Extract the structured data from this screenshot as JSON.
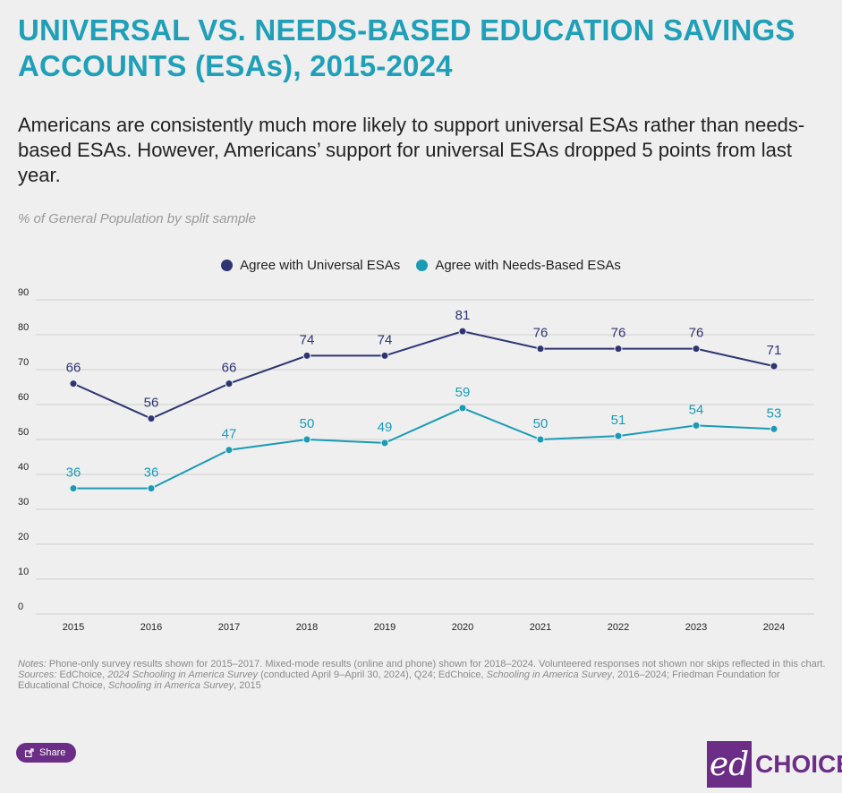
{
  "header": {
    "title": "UNIVERSAL VS. NEEDS-BASED EDUCATION SAVINGS ACCOUNTS (ESAs), 2015-2024",
    "subtitle": "Americans are consistently much more likely to support universal ESAs rather than needs-based ESAs. However, Americans’ support for universal ESAs dropped 5 points from last year.",
    "sample_note": "% of General Population by split sample"
  },
  "chart_data": {
    "type": "line",
    "x": [
      2015,
      2016,
      2017,
      2018,
      2019,
      2020,
      2021,
      2022,
      2023,
      2024
    ],
    "series": [
      {
        "name": "Agree with Universal ESAs",
        "color": "#2e3573",
        "values": [
          66,
          56,
          66,
          74,
          74,
          81,
          76,
          76,
          76,
          71
        ]
      },
      {
        "name": "Agree with Needs-Based ESAs",
        "color": "#1a9bb5",
        "values": [
          36,
          36,
          47,
          50,
          49,
          59,
          50,
          51,
          54,
          53
        ]
      }
    ],
    "ylim": [
      0,
      90
    ],
    "yticks": [
      0,
      10,
      20,
      30,
      40,
      50,
      60,
      70,
      80,
      90
    ],
    "grid": true,
    "legend_position": "top-center",
    "data_labels": true
  },
  "footer": {
    "notes_label": "Notes:",
    "notes_text": " Phone-only survey results shown for 2015–2017. Mixed-mode results (online and phone) shown for 2018–2024. Volunteered responses not shown nor skips reflected in this chart.",
    "sources_label": "Sources:",
    "sources_part1": " EdChoice, ",
    "sources_italic1": "2024 Schooling in America Survey",
    "sources_part2": " (conducted April 9–April 30, 2024), Q24; EdChoice, ",
    "sources_italic2": "Schooling in America Survey",
    "sources_part3": ", 2016–2024; Friedman Foundation for Educational Choice, ",
    "sources_italic3": "Schooling in America Survey",
    "sources_part4": ", 2015",
    "share_label": "Share",
    "logo_mark": "ed",
    "logo_text": "CHOICE"
  },
  "icons": {
    "share": "share-icon"
  },
  "colors": {
    "title": "#1fa0b8",
    "brand": "#6b2d86",
    "background": "#efefef"
  }
}
